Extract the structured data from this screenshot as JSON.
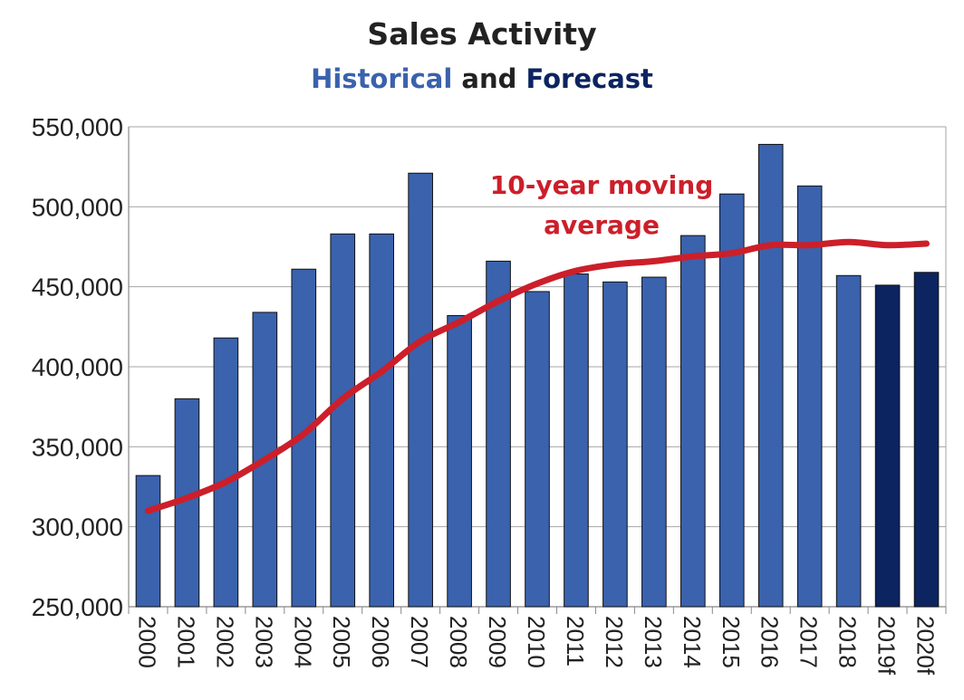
{
  "chart_data": {
    "type": "bar",
    "title": "Sales Activity",
    "subtitle": [
      {
        "text": "Historical",
        "color": "#3a62ad"
      },
      {
        "text": " and ",
        "color": "#222222"
      },
      {
        "text": "Forecast",
        "color": "#0c2460"
      }
    ],
    "xlabel": "",
    "ylabel": "",
    "ylim": [
      250000,
      550000
    ],
    "y_ticks": [
      "250,000",
      "300,000",
      "350,000",
      "400,000",
      "450,000",
      "500,000",
      "550,000"
    ],
    "grid": "horizontal",
    "categories": [
      "2000",
      "2001",
      "2002",
      "2003",
      "2004",
      "2005",
      "2006",
      "2007",
      "2008",
      "2009",
      "2010",
      "2011",
      "2012",
      "2013",
      "2014",
      "2015",
      "2016",
      "2017",
      "2018",
      "2019f",
      "2020f"
    ],
    "series": [
      {
        "type": "bar",
        "values": [
          332000,
          380000,
          418000,
          434000,
          461000,
          483000,
          483000,
          521000,
          432000,
          466000,
          447000,
          458000,
          453000,
          456000,
          482000,
          508000,
          539000,
          513000,
          457000,
          451000,
          459000
        ],
        "colors": {
          "historical": "#3a62ad",
          "forecast": "#0c2460"
        },
        "forecast_categories": [
          "2019f",
          "2020f"
        ]
      },
      {
        "type": "line",
        "name": "10-year moving average",
        "color": "#cc1f2a",
        "values": [
          310000,
          318000,
          328000,
          342000,
          358000,
          380000,
          397000,
          416000,
          428000,
          441000,
          452000,
          460000,
          464000,
          466000,
          469000,
          471000,
          476000,
          476000,
          478000,
          476000,
          477000
        ]
      }
    ],
    "annotation": {
      "lines": [
        "10-year moving",
        "average"
      ],
      "color": "#cc1f2a"
    }
  }
}
